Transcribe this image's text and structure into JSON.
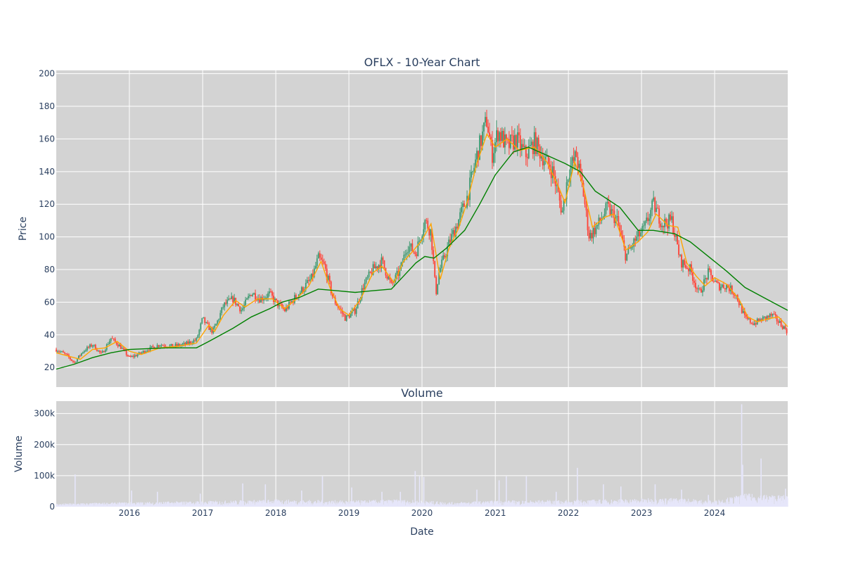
{
  "chart_data": {
    "type": "candlestick",
    "title": "OFLX - 10-Year Chart",
    "subplot_title": "Volume",
    "xlabel": "Date",
    "ylabel": "Price",
    "volume_ylabel": "Volume",
    "background_color": "#d3d3d3",
    "grid": true,
    "x_range": [
      "2015-01-01",
      "2024-12-31"
    ],
    "price_ylim": [
      8,
      202
    ],
    "volume_ylim": [
      0,
      340000
    ],
    "x_ticks": [
      {
        "date": "2016-01-01",
        "label": "2016"
      },
      {
        "date": "2017-01-01",
        "label": "2017"
      },
      {
        "date": "2018-01-01",
        "label": "2018"
      },
      {
        "date": "2019-01-01",
        "label": "2019"
      },
      {
        "date": "2020-01-01",
        "label": "2020"
      },
      {
        "date": "2021-01-01",
        "label": "2021"
      },
      {
        "date": "2022-01-01",
        "label": "2022"
      },
      {
        "date": "2023-01-01",
        "label": "2023"
      },
      {
        "date": "2024-01-01",
        "label": "2024"
      }
    ],
    "price_ticks": [
      {
        "value": 20,
        "label": "20"
      },
      {
        "value": 40,
        "label": "40"
      },
      {
        "value": 60,
        "label": "60"
      },
      {
        "value": 80,
        "label": "80"
      },
      {
        "value": 100,
        "label": "100"
      },
      {
        "value": 120,
        "label": "120"
      },
      {
        "value": 140,
        "label": "140"
      },
      {
        "value": 160,
        "label": "160"
      },
      {
        "value": 180,
        "label": "180"
      },
      {
        "value": 200,
        "label": "200"
      }
    ],
    "volume_ticks": [
      {
        "value": 0,
        "label": "0"
      },
      {
        "value": 100000,
        "label": "100k"
      },
      {
        "value": 200000,
        "label": "200k"
      },
      {
        "value": 300000,
        "label": "300k"
      }
    ],
    "colors": {
      "increasing": "#3d9970",
      "decreasing": "#ff4136",
      "short_ma": "#ffa500",
      "long_ma": "#008000",
      "volume": "#e6e6fa"
    },
    "price_path": [
      [
        "2015-01-01",
        31
      ],
      [
        "2015-02-15",
        28
      ],
      [
        "2015-04-01",
        23
      ],
      [
        "2015-05-15",
        30
      ],
      [
        "2015-07-01",
        34
      ],
      [
        "2015-08-15",
        28
      ],
      [
        "2015-10-01",
        38
      ],
      [
        "2015-11-15",
        33
      ],
      [
        "2016-01-01",
        26
      ],
      [
        "2016-02-15",
        28
      ],
      [
        "2016-04-01",
        31
      ],
      [
        "2016-06-01",
        34
      ],
      [
        "2016-08-01",
        33
      ],
      [
        "2016-10-01",
        34
      ],
      [
        "2016-12-01",
        37
      ],
      [
        "2017-01-01",
        50
      ],
      [
        "2017-01-20",
        46
      ],
      [
        "2017-02-20",
        42
      ],
      [
        "2017-03-15",
        48
      ],
      [
        "2017-04-15",
        58
      ],
      [
        "2017-06-01",
        62
      ],
      [
        "2017-07-15",
        55
      ],
      [
        "2017-09-01",
        66
      ],
      [
        "2017-10-15",
        62
      ],
      [
        "2017-12-01",
        65
      ],
      [
        "2018-01-01",
        60
      ],
      [
        "2018-02-15",
        55
      ],
      [
        "2018-04-01",
        62
      ],
      [
        "2018-05-15",
        68
      ],
      [
        "2018-07-01",
        75
      ],
      [
        "2018-08-01",
        87
      ],
      [
        "2018-09-01",
        82
      ],
      [
        "2018-10-15",
        62
      ],
      [
        "2018-12-15",
        50
      ],
      [
        "2019-02-01",
        55
      ],
      [
        "2019-03-15",
        70
      ],
      [
        "2019-05-01",
        80
      ],
      [
        "2019-06-15",
        85
      ],
      [
        "2019-08-01",
        70
      ],
      [
        "2019-09-15",
        80
      ],
      [
        "2019-10-20",
        95
      ],
      [
        "2019-12-01",
        90
      ],
      [
        "2020-01-15",
        110
      ],
      [
        "2020-02-15",
        103
      ],
      [
        "2020-03-10",
        65
      ],
      [
        "2020-03-25",
        78
      ],
      [
        "2020-05-15",
        96
      ],
      [
        "2020-07-01",
        110
      ],
      [
        "2020-08-15",
        125
      ],
      [
        "2020-10-01",
        150
      ],
      [
        "2020-11-20",
        172
      ],
      [
        "2020-12-15",
        150
      ],
      [
        "2021-01-15",
        165
      ],
      [
        "2021-03-01",
        155
      ],
      [
        "2021-04-15",
        160
      ],
      [
        "2021-06-01",
        150
      ],
      [
        "2021-07-15",
        158
      ],
      [
        "2021-09-01",
        148
      ],
      [
        "2021-10-15",
        140
      ],
      [
        "2021-12-01",
        115
      ],
      [
        "2022-01-01",
        140
      ],
      [
        "2022-02-10",
        150
      ],
      [
        "2022-03-15",
        128
      ],
      [
        "2022-04-15",
        100
      ],
      [
        "2022-06-01",
        108
      ],
      [
        "2022-07-15",
        118
      ],
      [
        "2022-09-01",
        110
      ],
      [
        "2022-10-15",
        88
      ],
      [
        "2022-12-01",
        98
      ],
      [
        "2023-01-15",
        105
      ],
      [
        "2023-03-01",
        120
      ],
      [
        "2023-04-15",
        108
      ],
      [
        "2023-06-01",
        110
      ],
      [
        "2023-07-15",
        85
      ],
      [
        "2023-09-01",
        80
      ],
      [
        "2023-10-15",
        65
      ],
      [
        "2023-12-01",
        78
      ],
      [
        "2024-01-15",
        70
      ],
      [
        "2024-03-01",
        70
      ],
      [
        "2024-04-15",
        65
      ],
      [
        "2024-06-01",
        50
      ],
      [
        "2024-07-15",
        47
      ],
      [
        "2024-09-01",
        50
      ],
      [
        "2024-10-15",
        52
      ],
      [
        "2024-12-31",
        42
      ]
    ],
    "short_ma": [
      [
        "2015-01-01",
        29
      ],
      [
        "2015-03-01",
        27
      ],
      [
        "2015-05-01",
        25
      ],
      [
        "2015-07-01",
        31
      ],
      [
        "2015-09-01",
        32
      ],
      [
        "2015-11-01",
        36
      ],
      [
        "2016-01-01",
        30
      ],
      [
        "2016-03-01",
        28
      ],
      [
        "2016-06-01",
        32
      ],
      [
        "2016-09-01",
        33
      ],
      [
        "2016-12-01",
        35
      ],
      [
        "2017-02-01",
        46
      ],
      [
        "2017-03-01",
        42
      ],
      [
        "2017-04-15",
        52
      ],
      [
        "2017-06-15",
        61
      ],
      [
        "2017-08-01",
        57
      ],
      [
        "2017-10-01",
        62
      ],
      [
        "2017-12-15",
        62
      ],
      [
        "2018-02-15",
        56
      ],
      [
        "2018-04-15",
        62
      ],
      [
        "2018-06-15",
        70
      ],
      [
        "2018-08-15",
        85
      ],
      [
        "2018-10-01",
        68
      ],
      [
        "2018-11-15",
        56
      ],
      [
        "2019-01-01",
        52
      ],
      [
        "2019-03-01",
        62
      ],
      [
        "2019-05-01",
        78
      ],
      [
        "2019-06-15",
        82
      ],
      [
        "2019-08-15",
        72
      ],
      [
        "2019-10-01",
        85
      ],
      [
        "2019-11-15",
        91
      ],
      [
        "2020-01-01",
        98
      ],
      [
        "2020-02-15",
        108
      ],
      [
        "2020-04-01",
        74
      ],
      [
        "2020-05-15",
        93
      ],
      [
        "2020-07-01",
        105
      ],
      [
        "2020-08-15",
        122
      ],
      [
        "2020-10-01",
        145
      ],
      [
        "2020-11-20",
        163
      ],
      [
        "2021-01-01",
        155
      ],
      [
        "2021-03-01",
        160
      ],
      [
        "2021-05-01",
        153
      ],
      [
        "2021-07-15",
        155
      ],
      [
        "2021-09-15",
        146
      ],
      [
        "2021-11-15",
        130
      ],
      [
        "2021-12-15",
        121
      ],
      [
        "2022-02-01",
        146
      ],
      [
        "2022-03-15",
        132
      ],
      [
        "2022-05-01",
        106
      ],
      [
        "2022-07-01",
        112
      ],
      [
        "2022-08-15",
        114
      ],
      [
        "2022-10-15",
        92
      ],
      [
        "2022-12-15",
        97
      ],
      [
        "2023-02-01",
        103
      ],
      [
        "2023-03-15",
        114
      ],
      [
        "2023-05-15",
        107
      ],
      [
        "2023-07-01",
        106
      ],
      [
        "2023-08-15",
        84
      ],
      [
        "2023-10-01",
        76
      ],
      [
        "2023-11-15",
        70
      ],
      [
        "2024-01-01",
        75
      ],
      [
        "2024-03-01",
        71
      ],
      [
        "2024-05-01",
        62
      ],
      [
        "2024-06-15",
        51
      ],
      [
        "2024-08-01",
        48
      ],
      [
        "2024-10-01",
        50
      ],
      [
        "2024-11-15",
        51
      ],
      [
        "2024-12-31",
        45
      ]
    ],
    "long_ma": [
      [
        "2015-01-01",
        19
      ],
      [
        "2015-04-01",
        22
      ],
      [
        "2015-07-01",
        26
      ],
      [
        "2015-10-01",
        29
      ],
      [
        "2016-01-01",
        31
      ],
      [
        "2016-07-01",
        32
      ],
      [
        "2016-12-01",
        32
      ],
      [
        "2017-02-01",
        36
      ],
      [
        "2017-06-01",
        44
      ],
      [
        "2017-09-01",
        51
      ],
      [
        "2017-12-01",
        56
      ],
      [
        "2018-02-01",
        60
      ],
      [
        "2018-05-01",
        63
      ],
      [
        "2018-08-01",
        68
      ],
      [
        "2018-11-01",
        67
      ],
      [
        "2019-02-01",
        66
      ],
      [
        "2019-05-01",
        67
      ],
      [
        "2019-08-01",
        68
      ],
      [
        "2019-10-01",
        76
      ],
      [
        "2019-12-01",
        84
      ],
      [
        "2020-01-15",
        88
      ],
      [
        "2020-03-01",
        87
      ],
      [
        "2020-05-01",
        93
      ],
      [
        "2020-08-01",
        104
      ],
      [
        "2020-10-15",
        120
      ],
      [
        "2021-01-01",
        138
      ],
      [
        "2021-04-01",
        152
      ],
      [
        "2021-06-15",
        155
      ],
      [
        "2021-09-15",
        150
      ],
      [
        "2021-12-15",
        145
      ],
      [
        "2022-03-01",
        140
      ],
      [
        "2022-05-15",
        128
      ],
      [
        "2022-09-15",
        118
      ],
      [
        "2022-12-15",
        104
      ],
      [
        "2023-03-01",
        104
      ],
      [
        "2023-06-15",
        102
      ],
      [
        "2023-09-01",
        97
      ],
      [
        "2023-12-01",
        88
      ],
      [
        "2024-03-01",
        79
      ],
      [
        "2024-06-01",
        69
      ],
      [
        "2024-09-15",
        62
      ],
      [
        "2024-12-31",
        55
      ]
    ],
    "volume_base": [
      [
        "2015-01-01",
        6000
      ],
      [
        "2016-01-01",
        9000
      ],
      [
        "2017-01-01",
        11000
      ],
      [
        "2018-01-01",
        14000
      ],
      [
        "2019-01-01",
        12000
      ],
      [
        "2019-09-01",
        14000
      ],
      [
        "2020-01-01",
        12000
      ],
      [
        "2020-06-01",
        9000
      ],
      [
        "2021-01-01",
        12000
      ],
      [
        "2022-01-01",
        13000
      ],
      [
        "2022-07-01",
        14000
      ],
      [
        "2023-01-01",
        16000
      ],
      [
        "2023-07-01",
        17000
      ],
      [
        "2024-01-01",
        12000
      ],
      [
        "2024-06-01",
        25000
      ],
      [
        "2024-12-31",
        22000
      ]
    ],
    "volume_spikes": [
      [
        "2015-04-05",
        104000
      ],
      [
        "2016-01-12",
        52000
      ],
      [
        "2016-05-20",
        48000
      ],
      [
        "2016-12-20",
        42000
      ],
      [
        "2017-07-20",
        75000
      ],
      [
        "2017-11-10",
        72000
      ],
      [
        "2018-05-10",
        52000
      ],
      [
        "2018-08-22",
        98000
      ],
      [
        "2019-01-15",
        62000
      ],
      [
        "2019-06-15",
        48000
      ],
      [
        "2019-09-15",
        48000
      ],
      [
        "2019-11-28",
        115000
      ],
      [
        "2019-12-20",
        98000
      ],
      [
        "2020-01-10",
        96000
      ],
      [
        "2020-10-01",
        55000
      ],
      [
        "2021-01-20",
        85000
      ],
      [
        "2021-02-25",
        98000
      ],
      [
        "2021-06-05",
        98000
      ],
      [
        "2021-11-01",
        48000
      ],
      [
        "2022-02-15",
        125000
      ],
      [
        "2022-06-25",
        72000
      ],
      [
        "2022-09-20",
        65000
      ],
      [
        "2023-03-10",
        72000
      ],
      [
        "2023-07-20",
        55000
      ],
      [
        "2023-12-01",
        38000
      ],
      [
        "2024-05-15",
        330000
      ],
      [
        "2024-05-20",
        135000
      ],
      [
        "2024-08-20",
        155000
      ],
      [
        "2024-12-20",
        58000
      ]
    ]
  }
}
